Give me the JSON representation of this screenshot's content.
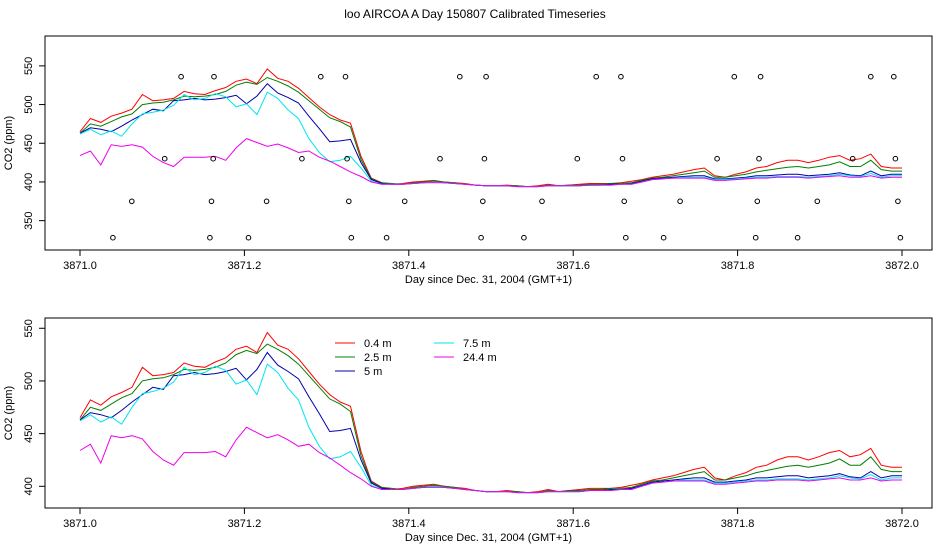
{
  "page": {
    "title": "loo AIRCOA A  Day 150807  Calibrated Timeseries"
  },
  "colors": {
    "0.4 m": "#ff0000",
    "2.5 m": "#008000",
    "5 m": "#0000aa",
    "7.5 m": "#00e5ee",
    "24.4 m": "#ee00ee"
  },
  "chart_data": [
    {
      "type": "line",
      "xlabel": "Day since Dec. 31, 2004 (GMT+1)",
      "ylabel": "CO2 (ppm)",
      "xlim": [
        3871.0,
        3872.0
      ],
      "ylim": [
        325,
        555
      ],
      "xticks": [
        3871.0,
        3871.2,
        3871.4,
        3871.6,
        3871.8,
        3872.0
      ],
      "yticks": [
        350,
        400,
        450,
        500,
        550
      ],
      "x": [
        3871.0,
        3871.0127,
        3871.0253,
        3871.038,
        3871.0506,
        3871.0633,
        3871.0759,
        3871.0886,
        3871.1013,
        3871.1139,
        3871.1266,
        3871.1392,
        3871.1519,
        3871.1646,
        3871.1772,
        3871.1899,
        3871.2025,
        3871.2152,
        3871.2278,
        3871.2405,
        3871.2532,
        3871.2658,
        3871.2785,
        3871.2911,
        3871.3038,
        3871.3165,
        3871.3291,
        3871.3418,
        3871.3544,
        3871.3671,
        3871.3797,
        3871.3924,
        3871.4051,
        3871.4177,
        3871.4304,
        3871.443,
        3871.4557,
        3871.4684,
        3871.481,
        3871.4937,
        3871.5063,
        3871.519,
        3871.5316,
        3871.5443,
        3871.557,
        3871.5696,
        3871.5823,
        3871.5949,
        3871.6076,
        3871.6203,
        3871.6329,
        3871.6456,
        3871.6582,
        3871.6709,
        3871.6835,
        3871.6962,
        3871.7089,
        3871.7215,
        3871.7342,
        3871.7468,
        3871.7595,
        3871.7722,
        3871.7848,
        3871.7975,
        3871.8101,
        3871.8228,
        3871.8354,
        3871.8481,
        3871.8608,
        3871.8734,
        3871.8861,
        3871.8987,
        3871.9114,
        3871.9241,
        3871.9367,
        3871.9494,
        3871.962,
        3871.9747,
        3871.9873,
        3872.0
      ],
      "series": [
        {
          "name": "0.4 m",
          "values": [
            465,
            482,
            477,
            485,
            489,
            494,
            513,
            505,
            506,
            508,
            517,
            514,
            513,
            518,
            522,
            530,
            533,
            527,
            546,
            534,
            530,
            521,
            509,
            497,
            487,
            480,
            476,
            433,
            405,
            399,
            397,
            398,
            400,
            401,
            402,
            400,
            399,
            398,
            396,
            395,
            395,
            396,
            395,
            394,
            395,
            397,
            395,
            396,
            397,
            398,
            398,
            398,
            399,
            401,
            403,
            406,
            408,
            410,
            413,
            416,
            418,
            408,
            406,
            410,
            413,
            418,
            420,
            425,
            428,
            428,
            425,
            428,
            432,
            434,
            428,
            430,
            436,
            420,
            418,
            418
          ]
        },
        {
          "name": "2.5 m",
          "values": [
            463,
            475,
            472,
            478,
            484,
            488,
            500,
            502,
            503,
            506,
            511,
            510,
            511,
            513,
            517,
            525,
            529,
            526,
            535,
            530,
            524,
            516,
            505,
            494,
            483,
            478,
            471,
            429,
            404,
            399,
            398,
            397,
            399,
            400,
            401,
            400,
            399,
            397,
            396,
            395,
            395,
            395,
            395,
            394,
            394,
            396,
            395,
            396,
            396,
            397,
            397,
            398,
            398,
            399,
            402,
            405,
            406,
            408,
            410,
            412,
            414,
            406,
            406,
            408,
            410,
            413,
            415,
            417,
            419,
            420,
            418,
            420,
            422,
            426,
            420,
            420,
            428,
            416,
            414,
            414
          ]
        },
        {
          "name": "5 m",
          "values": [
            463,
            470,
            468,
            465,
            472,
            480,
            487,
            494,
            492,
            505,
            506,
            508,
            506,
            507,
            509,
            512,
            501,
            511,
            527,
            515,
            509,
            502,
            485,
            469,
            452,
            453,
            455,
            425,
            403,
            398,
            397,
            397,
            398,
            399,
            400,
            399,
            398,
            397,
            396,
            395,
            395,
            395,
            394,
            394,
            394,
            395,
            395,
            395,
            395,
            396,
            396,
            397,
            397,
            398,
            401,
            404,
            405,
            406,
            407,
            408,
            408,
            404,
            404,
            405,
            406,
            408,
            408,
            409,
            410,
            410,
            408,
            409,
            410,
            412,
            409,
            408,
            414,
            408,
            410,
            410
          ]
        },
        {
          "name": "7.5 m",
          "values": [
            462,
            468,
            461,
            466,
            459,
            475,
            488,
            490,
            493,
            499,
            513,
            506,
            508,
            514,
            510,
            497,
            501,
            487,
            516,
            508,
            493,
            482,
            456,
            438,
            426,
            428,
            433,
            418,
            401,
            397,
            397,
            397,
            398,
            399,
            400,
            399,
            398,
            397,
            396,
            395,
            395,
            395,
            394,
            394,
            394,
            395,
            395,
            395,
            395,
            396,
            396,
            396,
            397,
            397,
            400,
            403,
            404,
            405,
            406,
            406,
            406,
            403,
            403,
            404,
            405,
            406,
            406,
            407,
            407,
            407,
            406,
            407,
            408,
            410,
            408,
            407,
            411,
            406,
            408,
            408
          ]
        },
        {
          "name": "24.4 m",
          "values": [
            434,
            440,
            422,
            448,
            446,
            448,
            445,
            433,
            425,
            420,
            432,
            432,
            432,
            433,
            428,
            444,
            456,
            451,
            446,
            449,
            444,
            438,
            440,
            432,
            427,
            420,
            413,
            407,
            400,
            397,
            397,
            397,
            398,
            399,
            399,
            399,
            398,
            397,
            396,
            395,
            395,
            395,
            394,
            394,
            394,
            395,
            395,
            395,
            395,
            396,
            396,
            396,
            397,
            397,
            400,
            403,
            404,
            405,
            405,
            405,
            405,
            402,
            402,
            403,
            404,
            405,
            405,
            406,
            406,
            406,
            405,
            406,
            407,
            408,
            406,
            406,
            408,
            405,
            406,
            406
          ]
        }
      ],
      "markers": {
        "shape": "open-circle",
        "points": [
          [
            3871.04,
            328
          ],
          [
            3871.063,
            375
          ],
          [
            3871.103,
            430
          ],
          [
            3871.123,
            536
          ],
          [
            3871.158,
            328
          ],
          [
            3871.16,
            375
          ],
          [
            3871.162,
            430
          ],
          [
            3871.163,
            536
          ],
          [
            3871.205,
            328
          ],
          [
            3871.227,
            375
          ],
          [
            3871.27,
            430
          ],
          [
            3871.293,
            536
          ],
          [
            3871.323,
            536
          ],
          [
            3871.325,
            430
          ],
          [
            3871.327,
            375
          ],
          [
            3871.33,
            328
          ],
          [
            3871.373,
            328
          ],
          [
            3871.395,
            375
          ],
          [
            3871.438,
            430
          ],
          [
            3871.462,
            536
          ],
          [
            3871.488,
            328
          ],
          [
            3871.49,
            375
          ],
          [
            3871.492,
            430
          ],
          [
            3871.494,
            536
          ],
          [
            3871.54,
            328
          ],
          [
            3871.562,
            375
          ],
          [
            3871.605,
            430
          ],
          [
            3871.628,
            536
          ],
          [
            3871.658,
            536
          ],
          [
            3871.66,
            430
          ],
          [
            3871.662,
            375
          ],
          [
            3871.664,
            328
          ],
          [
            3871.71,
            328
          ],
          [
            3871.73,
            375
          ],
          [
            3871.775,
            430
          ],
          [
            3871.796,
            536
          ],
          [
            3871.822,
            328
          ],
          [
            3871.824,
            375
          ],
          [
            3871.826,
            430
          ],
          [
            3871.828,
            536
          ],
          [
            3871.873,
            328
          ],
          [
            3871.897,
            375
          ],
          [
            3871.94,
            430
          ],
          [
            3871.962,
            536
          ],
          [
            3871.99,
            536
          ],
          [
            3871.992,
            430
          ],
          [
            3871.995,
            375
          ],
          [
            3871.998,
            328
          ]
        ]
      },
      "legend": "none",
      "grid": false
    },
    {
      "type": "line",
      "xlabel": "Day since Dec. 31, 2004 (GMT+1)",
      "ylabel": "CO2 (ppm)",
      "xlim": [
        3871.0,
        3872.0
      ],
      "ylim": [
        387,
        555
      ],
      "xticks": [
        3871.0,
        3871.2,
        3871.4,
        3871.6,
        3871.8,
        3872.0
      ],
      "yticks": [
        400,
        450,
        500,
        550
      ],
      "series_ref": "same as panel 1",
      "legend": "top-center",
      "legend_entries": [
        "0.4 m",
        "2.5 m",
        "5 m",
        "7.5 m",
        "24.4 m"
      ],
      "grid": false
    }
  ]
}
